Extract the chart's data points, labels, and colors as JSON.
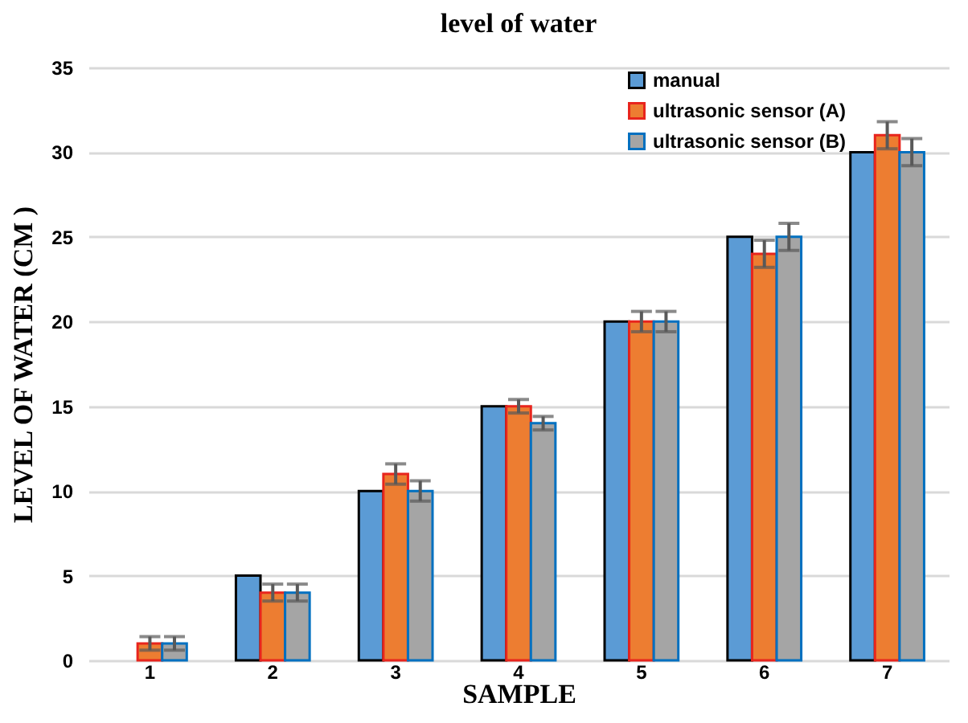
{
  "chart_data": {
    "type": "bar",
    "title": "level of water",
    "xlabel": "SAMPLE",
    "ylabel": "LEVEL OF WATER (CM )",
    "categories": [
      "1",
      "2",
      "3",
      "4",
      "5",
      "6",
      "7"
    ],
    "series": [
      {
        "name": "manual",
        "color": "#5b9bd5",
        "values": [
          0,
          5,
          10,
          15,
          20,
          25,
          30
        ]
      },
      {
        "name": "ultrasonic sensor (A)",
        "color": "#ed7d31",
        "values": [
          1,
          4,
          11,
          15,
          20,
          24,
          31
        ],
        "errors": [
          0.4,
          0.5,
          0.6,
          0.4,
          0.6,
          0.8,
          0.8
        ]
      },
      {
        "name": "ultrasonic sensor (B)",
        "color": "#a5a5a5",
        "values": [
          1,
          4,
          10,
          14,
          20,
          25,
          30
        ],
        "errors": [
          0.4,
          0.5,
          0.6,
          0.4,
          0.6,
          0.8,
          0.8
        ]
      }
    ],
    "ylim": [
      0,
      35
    ],
    "yticks": [
      0,
      5,
      10,
      15,
      20,
      25,
      30,
      35
    ],
    "grid": "y",
    "legend": "top right"
  }
}
